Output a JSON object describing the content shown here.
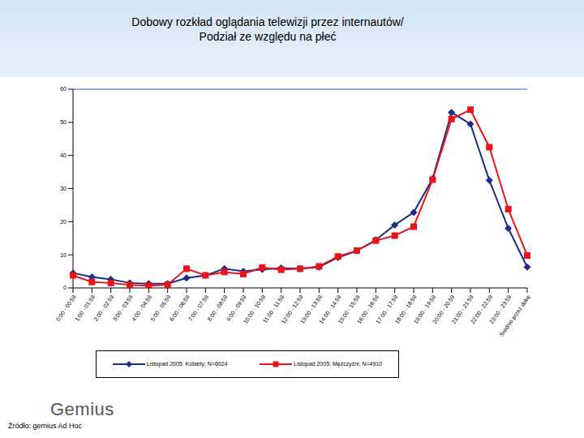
{
  "chart_data": {
    "type": "line",
    "title": "Dobowy rozkład oglądania telewizji przez internautów/",
    "subtitle": "Podział ze względu na płeć",
    "source": "Źródło: gemius Ad Hoc",
    "logo": "Gemius",
    "categories": [
      "0:00 - 00:59",
      "1:00 - 01:59",
      "2:00 - 02:59",
      "3:00 - 03:59",
      "4:00 - 04:59",
      "5:00 - 05:59",
      "6:00 - 06:59",
      "7:00 - 07:59",
      "8:00 - 08:59",
      "9:00 - 09:59",
      "10:00 - 10:59",
      "11:00 - 11:59",
      "12:00 - 12:59",
      "13:00 - 13:59",
      "14:00 - 14:59",
      "15:00 - 15:59",
      "16:00 - 16:59",
      "17:00 - 17:59",
      "18:00 - 18:59",
      "19:00 - 19:59",
      "20:00 - 20:59",
      "21:00 - 21:59",
      "22:00 - 22:59",
      "23:00 - 23:59",
      "Średnio przez dobę"
    ],
    "series": [
      {
        "name": "Listopad 2005: Kobiety; N=6024",
        "color": "#1f2a8c",
        "marker": "diamond",
        "values": [
          4.5,
          3.3,
          2.6,
          1.5,
          1.3,
          1.3,
          3.0,
          3.8,
          5.8,
          5.0,
          5.6,
          6.0,
          5.8,
          6.3,
          9.2,
          11.2,
          14.5,
          19.0,
          22.8,
          33.0,
          53.0,
          49.5,
          32.5,
          18.0,
          6.3
        ]
      },
      {
        "name": "Listopad 2005: Mężczyźni; N=4910",
        "color": "#e8141a",
        "marker": "square",
        "values": [
          3.8,
          1.8,
          1.5,
          0.9,
          0.7,
          1.0,
          5.8,
          3.8,
          4.8,
          4.2,
          6.2,
          5.5,
          5.8,
          6.5,
          9.5,
          11.3,
          14.3,
          15.8,
          18.5,
          32.7,
          51.0,
          53.8,
          42.5,
          23.8,
          9.8
        ]
      }
    ],
    "ylim": [
      0,
      60
    ],
    "yticks": [
      0,
      10,
      20,
      30,
      40,
      50,
      60
    ],
    "grid": false,
    "legend": "bottom"
  }
}
